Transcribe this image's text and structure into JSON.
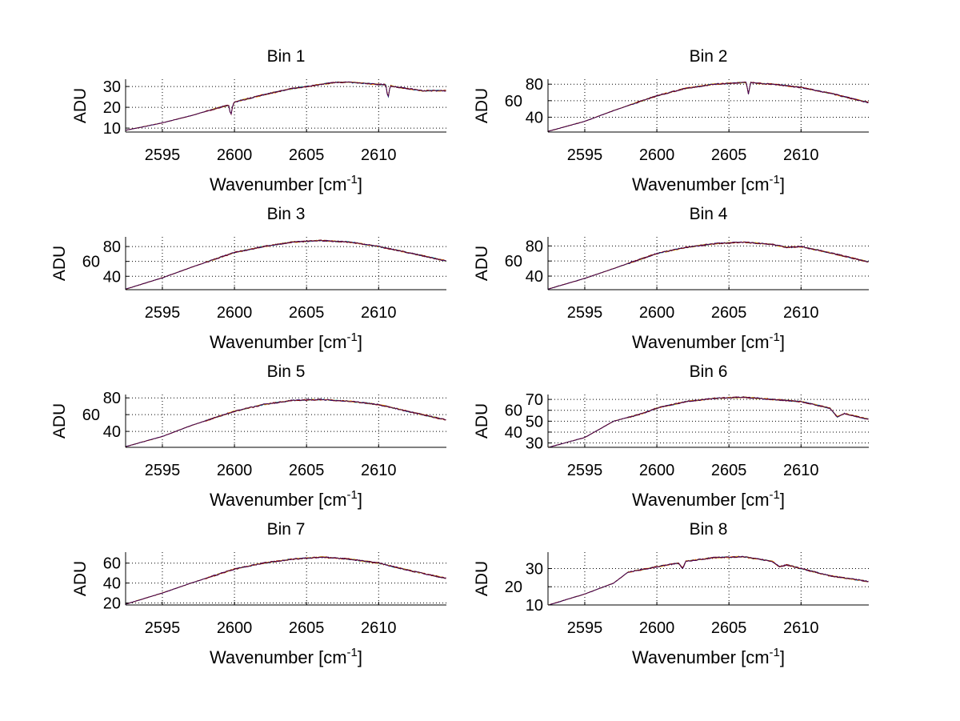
{
  "chart_data": [
    {
      "type": "line",
      "title": "Bin 1",
      "xlabel": "Wavenumber [cm",
      "xlabel_sup": "-1",
      "xlabel_end": "]",
      "ylabel": "ADU",
      "xlim": [
        2592.45,
        2614.7
      ],
      "ylim": [
        8.1,
        33.5
      ],
      "xticks": [
        2595,
        2600,
        2605,
        2610
      ],
      "yticks": [
        10,
        20,
        30
      ],
      "grid": true,
      "x": [
        2592.5,
        2595,
        2597,
        2599,
        2599.6,
        2599.75,
        2599.9,
        2600,
        2602,
        2604,
        2605,
        2606,
        2607,
        2608,
        2609,
        2610,
        2610.5,
        2610.65,
        2610.8,
        2611,
        2612,
        2613,
        2614.6
      ],
      "values": [
        9,
        12.5,
        16,
        20,
        21,
        16,
        21.5,
        22.5,
        26,
        29,
        30,
        31,
        32,
        32,
        31.5,
        31,
        31,
        24,
        30.5,
        30,
        29,
        28,
        28
      ]
    },
    {
      "type": "line",
      "title": "Bin 2",
      "xlabel": "Wavenumber [cm",
      "xlabel_sup": "-1",
      "xlabel_end": "]",
      "ylabel": "ADU",
      "xlim": [
        2592.45,
        2614.7
      ],
      "ylim": [
        22,
        86
      ],
      "xticks": [
        2595,
        2600,
        2605,
        2610
      ],
      "yticks": [
        40,
        60,
        80
      ],
      "grid": true,
      "x": [
        2592.5,
        2595,
        2597,
        2600,
        2602,
        2604,
        2605,
        2606,
        2606.2,
        2606.35,
        2606.5,
        2607,
        2608,
        2610,
        2612,
        2614.6
      ],
      "values": [
        23,
        35,
        48,
        66,
        75,
        80,
        81,
        82,
        82,
        68,
        82,
        81,
        80,
        76,
        69,
        58
      ]
    },
    {
      "type": "line",
      "title": "Bin 3",
      "xlabel": "Wavenumber [cm",
      "xlabel_sup": "-1",
      "xlabel_end": "]",
      "ylabel": "ADU",
      "xlim": [
        2592.45,
        2614.7
      ],
      "ylim": [
        22,
        93
      ],
      "xticks": [
        2595,
        2600,
        2605,
        2610
      ],
      "yticks": [
        40,
        60,
        80
      ],
      "grid": true,
      "x": [
        2592.5,
        2595,
        2597,
        2600,
        2602,
        2604,
        2605,
        2606,
        2608,
        2610,
        2612,
        2614.6
      ],
      "values": [
        23,
        38,
        52,
        72,
        80,
        86,
        87,
        88,
        86,
        80,
        72,
        61
      ]
    },
    {
      "type": "line",
      "title": "Bin 4",
      "xlabel": "Wavenumber [cm",
      "xlabel_sup": "-1",
      "xlabel_end": "]",
      "ylabel": "ADU",
      "xlim": [
        2592.45,
        2614.7
      ],
      "ylim": [
        22,
        92
      ],
      "xticks": [
        2595,
        2600,
        2605,
        2610
      ],
      "yticks": [
        40,
        60,
        80
      ],
      "grid": true,
      "x": [
        2592.5,
        2595,
        2597,
        2600,
        2602,
        2604,
        2606,
        2608,
        2609,
        2610,
        2612,
        2614.6
      ],
      "values": [
        23,
        37,
        50,
        70,
        78,
        83,
        85,
        82,
        78,
        79,
        71,
        59
      ]
    },
    {
      "type": "line",
      "title": "Bin 5",
      "xlabel": "Wavenumber [cm",
      "xlabel_sup": "-1",
      "xlabel_end": "]",
      "ylabel": "ADU",
      "xlim": [
        2592.45,
        2614.7
      ],
      "ylim": [
        21,
        84
      ],
      "xticks": [
        2595,
        2600,
        2605,
        2610
      ],
      "yticks": [
        40,
        60,
        80
      ],
      "grid": true,
      "x": [
        2592.5,
        2595,
        2597,
        2600,
        2602,
        2604,
        2606,
        2608,
        2610,
        2612,
        2614.6
      ],
      "values": [
        22,
        34,
        47,
        64,
        72,
        77,
        78,
        76,
        72,
        64,
        54
      ]
    },
    {
      "type": "line",
      "title": "Bin 6",
      "xlabel": "Wavenumber [cm",
      "xlabel_sup": "-1",
      "xlabel_end": "]",
      "ylabel": "ADU",
      "xlim": [
        2592.45,
        2614.7
      ],
      "ylim": [
        26,
        74.5
      ],
      "xticks": [
        2595,
        2600,
        2605,
        2610
      ],
      "yticks": [
        30,
        40,
        50,
        60,
        70
      ],
      "grid": true,
      "x": [
        2592.5,
        2595,
        2597,
        2599,
        2600,
        2602,
        2604,
        2606,
        2608,
        2610,
        2612,
        2612.5,
        2613,
        2614.6
      ],
      "values": [
        26,
        35,
        50,
        57,
        62,
        68,
        71,
        72,
        70,
        68,
        62,
        54,
        57,
        52
      ]
    },
    {
      "type": "line",
      "title": "Bin 7",
      "xlabel": "Wavenumber [cm",
      "xlabel_sup": "-1",
      "xlabel_end": "]",
      "ylabel": "ADU",
      "xlim": [
        2592.45,
        2614.7
      ],
      "ylim": [
        18,
        71
      ],
      "xticks": [
        2595,
        2600,
        2605,
        2610
      ],
      "yticks": [
        20,
        40,
        60
      ],
      "grid": true,
      "x": [
        2592.5,
        2595,
        2597,
        2600,
        2602,
        2604,
        2606,
        2608,
        2610,
        2612,
        2614.6
      ],
      "values": [
        19,
        30,
        40,
        54,
        60,
        64,
        66,
        64,
        60,
        53,
        45
      ]
    },
    {
      "type": "line",
      "title": "Bin 8",
      "xlabel": "Wavenumber [cm",
      "xlabel_sup": "-1",
      "xlabel_end": "]",
      "ylabel": "ADU",
      "xlim": [
        2592.45,
        2614.7
      ],
      "ylim": [
        10,
        39
      ],
      "xticks": [
        2595,
        2600,
        2605,
        2610
      ],
      "yticks": [
        10,
        20,
        30
      ],
      "grid": true,
      "x": [
        2592.5,
        2595,
        2597,
        2598,
        2600,
        2601.5,
        2601.8,
        2602,
        2604,
        2606,
        2608,
        2608.5,
        2609,
        2610,
        2612,
        2614.6
      ],
      "values": [
        10,
        16,
        22,
        28,
        31,
        33,
        30,
        34,
        36,
        36.5,
        34,
        31,
        32,
        30,
        26,
        23
      ]
    }
  ],
  "colors": {
    "series": [
      "#00bfbf",
      "#ff8c00",
      "#bf8f00",
      "#800000",
      "#400060"
    ],
    "grid": "#000000"
  }
}
